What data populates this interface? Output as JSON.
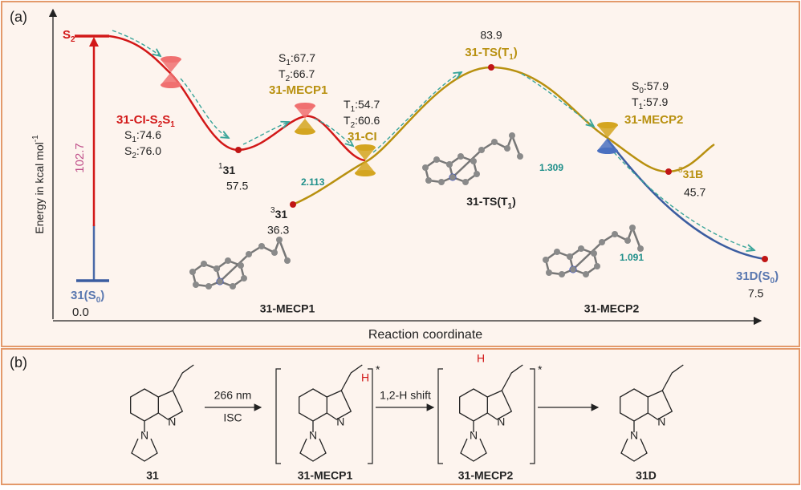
{
  "panel_a": {
    "label": "(a)",
    "y_axis": [
      "Energy in kcal mol",
      "-1"
    ],
    "x_axis": "Reaction coordinate",
    "excitation": "102.7",
    "s2": [
      "S",
      "2"
    ],
    "s0": [
      "31(S",
      "0",
      ")"
    ],
    "s0_energy": "0.0",
    "ci_s2s1": {
      "name": [
        "31-CI-S",
        "2",
        "S",
        "1"
      ],
      "s1": [
        "S",
        "1",
        ":74.6"
      ],
      "s2": [
        "S",
        "2",
        ":76.0"
      ]
    },
    "s1_min": {
      "name": [
        "1",
        "31"
      ],
      "energy": "57.5"
    },
    "mecp1": {
      "s1": [
        "S",
        "1",
        ":67.7"
      ],
      "t2": [
        "T",
        "2",
        ":66.7"
      ],
      "name": "31-MECP1"
    },
    "ci": {
      "t1": [
        "T",
        "1",
        ":54.7"
      ],
      "t2": [
        "T",
        "2",
        ":60.6"
      ],
      "name": "31-CI"
    },
    "t1_start": {
      "name": [
        "3",
        "31"
      ],
      "energy": "36.3"
    },
    "ts": {
      "energy": "83.9",
      "name": [
        "31-TS(T",
        "1",
        ")"
      ]
    },
    "mecp2": {
      "s0": [
        "S",
        "0",
        ":57.9"
      ],
      "t1": [
        "T",
        "1",
        ":57.9"
      ],
      "name": "31-MECP2"
    },
    "t1_b": {
      "name": [
        "3",
        "31B"
      ],
      "energy": "45.7"
    },
    "product": {
      "name": [
        "31D(S",
        "0",
        ")"
      ],
      "energy": "7.5"
    },
    "structures": {
      "ts": {
        "name": [
          "31-TS(T",
          "1",
          ")"
        ],
        "distance": "1.309"
      },
      "mecp1": {
        "name": "31-MECP1",
        "distance": "2.113"
      },
      "mecp2": {
        "name": "31-MECP2",
        "distance": "1.091"
      }
    }
  },
  "panel_b": {
    "label": "(b)",
    "atom_n": "N",
    "atom_h": "H",
    "excited": "*",
    "step1": {
      "top": "266 nm",
      "bottom": "ISC"
    },
    "step2": "1,2-H shift",
    "compounds": [
      "31",
      "31-MECP1",
      "31-MECP2",
      "31D"
    ]
  }
}
